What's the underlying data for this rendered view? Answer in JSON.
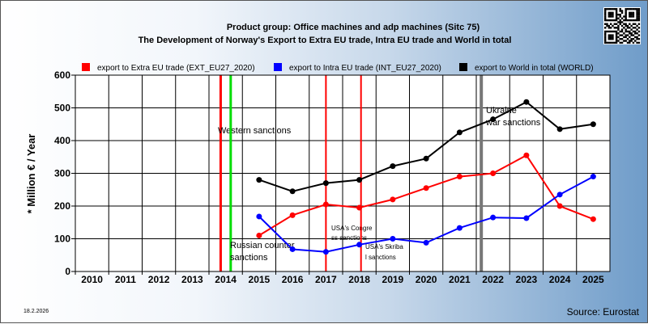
{
  "chart_data": {
    "type": "line",
    "title": "Product group: Office machines and adp machines (Sitc 75)",
    "subtitle": "The Development of Norway's Export to Extra EU trade, Intra EU trade and World in total",
    "ylabel": "* Million € / Year",
    "xlabel": "",
    "ylim": [
      0,
      600
    ],
    "yticks": [
      "0",
      "100",
      "200",
      "300",
      "400",
      "500",
      "600"
    ],
    "categories": [
      "2010",
      "2011",
      "2012",
      "2013",
      "2014",
      "2015",
      "2016",
      "2017",
      "2018",
      "2019",
      "2020",
      "2021",
      "2022",
      "2023",
      "2024",
      "2025"
    ],
    "grid": true,
    "legend_position": "top",
    "series": [
      {
        "name": "export to Extra EU trade (EXT_EU27_2020)",
        "color": "#ff0000",
        "values": [
          null,
          null,
          null,
          null,
          null,
          110,
          172,
          205,
          195,
          220,
          255,
          290,
          300,
          355,
          200,
          160
        ]
      },
      {
        "name": "export to Intra EU trade (INT_EU27_2020)",
        "color": "#0000ff",
        "values": [
          null,
          null,
          null,
          null,
          null,
          168,
          68,
          60,
          82,
          100,
          88,
          133,
          165,
          163,
          235,
          290
        ]
      },
      {
        "name": "export to World in total (WORLD)",
        "color": "#000000",
        "values": [
          null,
          null,
          null,
          null,
          null,
          280,
          245,
          270,
          280,
          322,
          345,
          425,
          465,
          518,
          435,
          450
        ]
      }
    ],
    "events": [
      {
        "label": "Western sanctions",
        "year": 2013.85,
        "color": "#ff0000"
      },
      {
        "label": "Russian counter sanctions",
        "year": 2014.15,
        "color": "#00dd00"
      },
      {
        "label": "USA's Congress sanctions",
        "year": 2017.0,
        "color": "#ff0000"
      },
      {
        "label": "USA's Skribal sanctions",
        "year": 2018.05,
        "color": "#ff0000"
      },
      {
        "label": "Ukraine war sanctions",
        "year": 2021.65,
        "color": "#777777"
      }
    ],
    "source": "Source: Eurostat",
    "date": "18.2.2026"
  }
}
